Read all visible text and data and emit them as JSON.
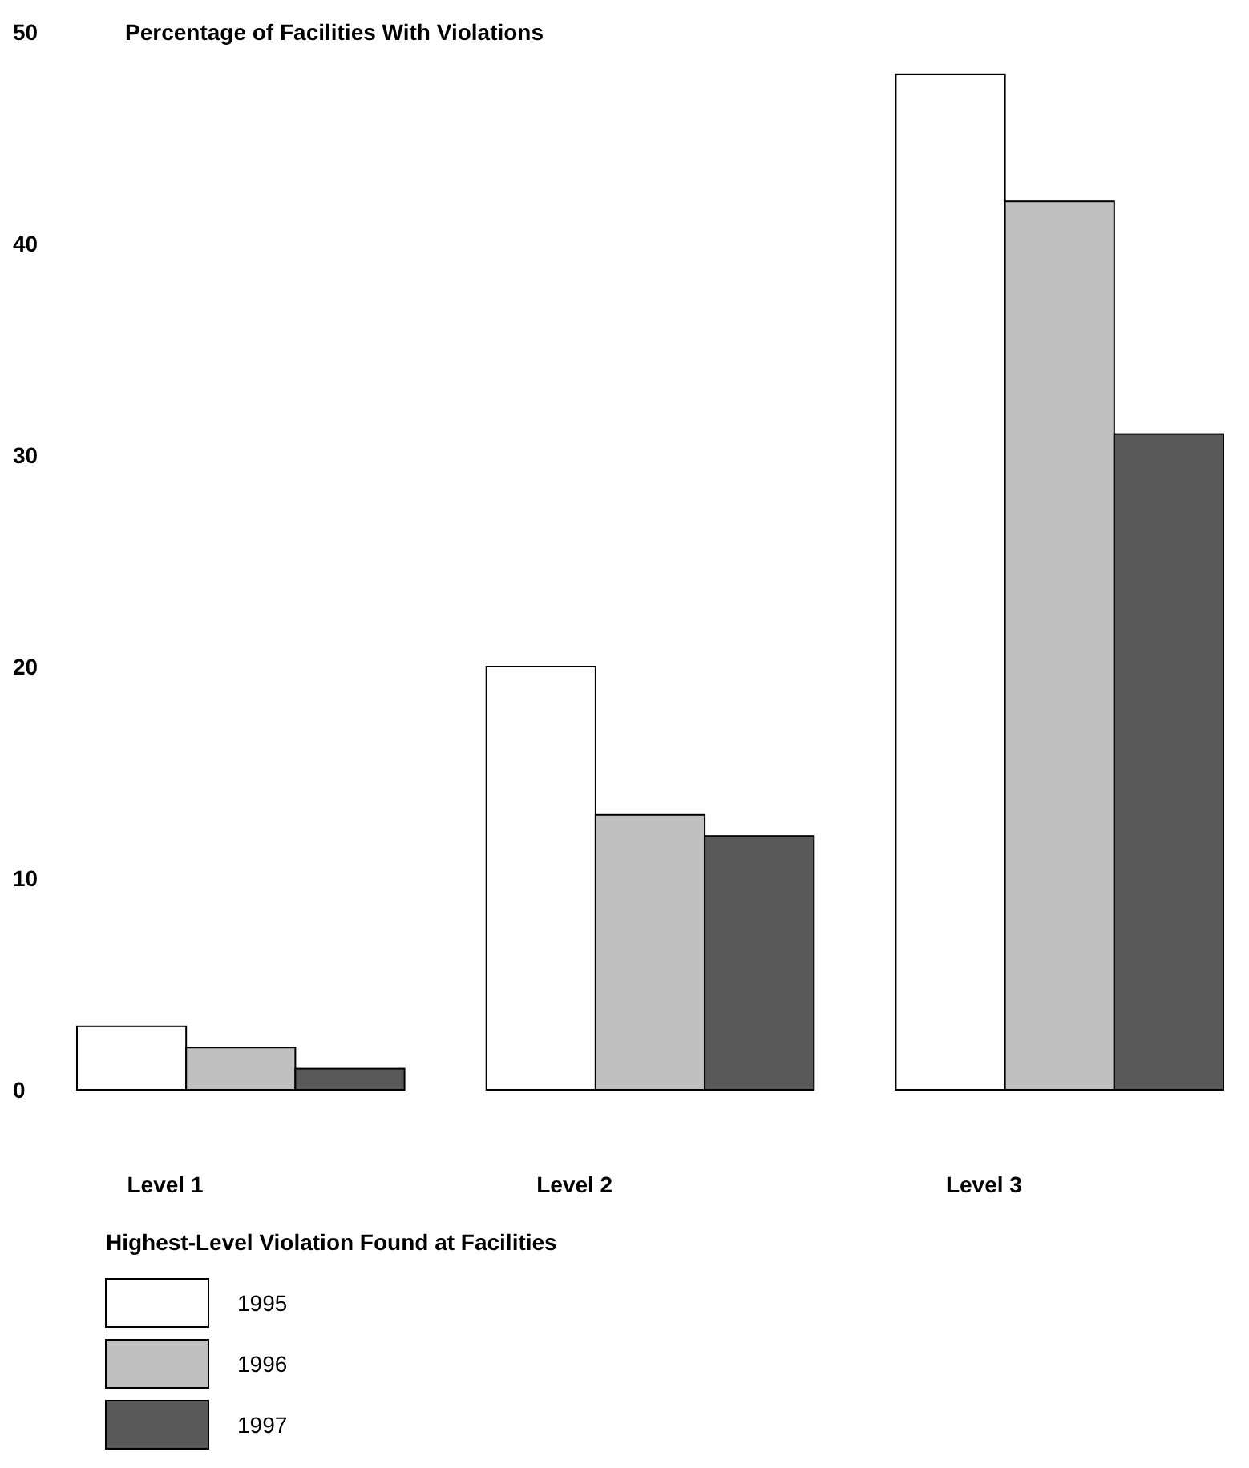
{
  "chart_data": {
    "type": "bar",
    "ylabel": "Percentage of Facilities With Violations",
    "xlabel": "Highest-Level Violation Found at Facilities",
    "categories": [
      "Level 1",
      "Level 2",
      "Level 3"
    ],
    "series": [
      {
        "name": "1995",
        "color": "#ffffff",
        "values": [
          3,
          20,
          48
        ]
      },
      {
        "name": "1996",
        "color": "#c0c0c0",
        "values": [
          2,
          13,
          42
        ]
      },
      {
        "name": "1997",
        "color": "#595959",
        "values": [
          1,
          12,
          31
        ]
      }
    ],
    "ylim": [
      0,
      50
    ],
    "yticks": [
      0,
      10,
      20,
      30,
      40,
      50
    ],
    "grid": false,
    "legend": "bottom"
  }
}
